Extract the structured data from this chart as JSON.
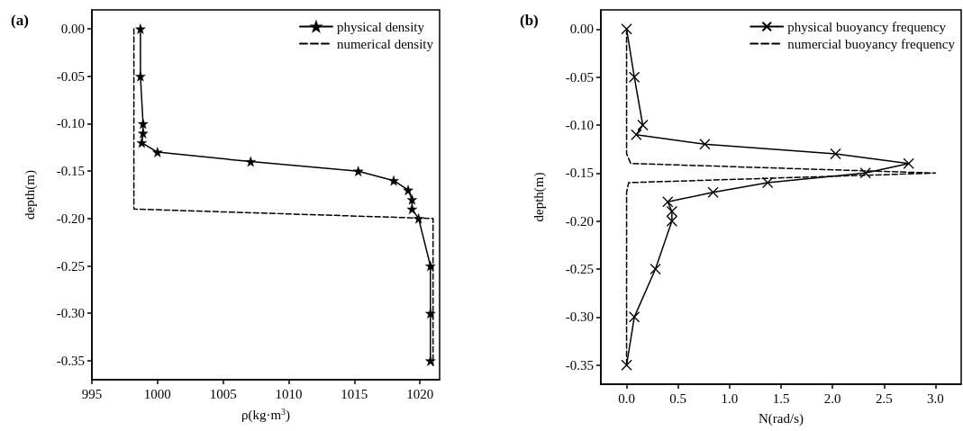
{
  "chart_data": [
    {
      "type": "line",
      "xlabel": "ρ(kg·m$^{3}$)",
      "ylabel": "depth(m)",
      "annotations": [
        "(a)"
      ],
      "legend": "top right",
      "grid": false,
      "xlim": [
        995,
        1021.5
      ],
      "xticks": [
        995,
        1000,
        1005,
        1010,
        1015,
        1020
      ],
      "ylim": [
        -0.37,
        0.02
      ],
      "yticks": [
        {
          "value": 0,
          "label": "0.00"
        },
        -0.05,
        {
          "value": -0.1,
          "label": "-0.10"
        },
        -0.15,
        {
          "value": -0.2,
          "label": "-0.20"
        },
        -0.25,
        {
          "value": -0.3,
          "label": "-0.30"
        },
        -0.35
      ],
      "series": [
        {
          "name": "physical density",
          "color": "#000000",
          "marker": "star",
          "line_style": "solid",
          "x": [
            998.7,
            998.7,
            998.9,
            998.9,
            998.8,
            1000.0,
            1007.1,
            1015.3,
            1018.0,
            1019.1,
            1019.4,
            1019.4,
            1019.9,
            1020.8,
            1020.8,
            1020.8
          ],
          "values": [
            0,
            -0.05,
            -0.1,
            -0.11,
            -0.12,
            -0.13,
            -0.14,
            -0.15,
            -0.16,
            -0.17,
            -0.18,
            -0.19,
            -0.2,
            -0.25,
            -0.3,
            -0.35
          ]
        },
        {
          "name": "numerical density",
          "color": "#000000",
          "marker": "none",
          "line_style": "dashed",
          "x": [
            998.2,
            998.2,
            1021.0,
            1021.0
          ],
          "values": [
            0,
            -0.19,
            -0.2,
            -0.355
          ]
        }
      ]
    },
    {
      "type": "line",
      "xlabel": "N(rad/s)",
      "ylabel": "depth(m)",
      "annotations": [
        "(b)"
      ],
      "legend": "top right",
      "grid": false,
      "xlim": [
        -0.25,
        3.25
      ],
      "xticks": [
        {
          "value": 0,
          "label": "0.0"
        },
        0.5,
        {
          "value": 1,
          "label": "1.0"
        },
        1.5,
        {
          "value": 2,
          "label": "2.0"
        },
        2.5,
        {
          "value": 3,
          "label": "3.0"
        }
      ],
      "ylim": [
        -0.37,
        0.02
      ],
      "yticks": [
        {
          "value": 0,
          "label": "0.00"
        },
        -0.05,
        {
          "value": -0.1,
          "label": "-0.10"
        },
        -0.15,
        {
          "value": -0.2,
          "label": "-0.20"
        },
        -0.25,
        {
          "value": -0.3,
          "label": "-0.30"
        },
        -0.35
      ],
      "series": [
        {
          "name": "physical buoyancy frequency",
          "color": "#000000",
          "marker": "cross",
          "line_style": "solid",
          "x": [
            0,
            0.075,
            0.157,
            0.094,
            0.76,
            2.03,
            2.74,
            2.32,
            1.37,
            0.84,
            0.4,
            0.44,
            0.44,
            0.28,
            0.075,
            0
          ],
          "values": [
            0,
            -0.05,
            -0.1,
            -0.11,
            -0.12,
            -0.13,
            -0.14,
            -0.15,
            -0.16,
            -0.17,
            -0.18,
            -0.19,
            -0.2,
            -0.25,
            -0.3,
            -0.35
          ]
        },
        {
          "name": "numercial buoyancy frequency",
          "color": "#000000",
          "marker": "none",
          "line_style": "dashed",
          "x": [
            0,
            0,
            0.04,
            3.0,
            0.02,
            0,
            0
          ],
          "values": [
            0,
            -0.13,
            -0.14,
            -0.15,
            -0.16,
            -0.17,
            -0.35
          ]
        }
      ]
    }
  ]
}
